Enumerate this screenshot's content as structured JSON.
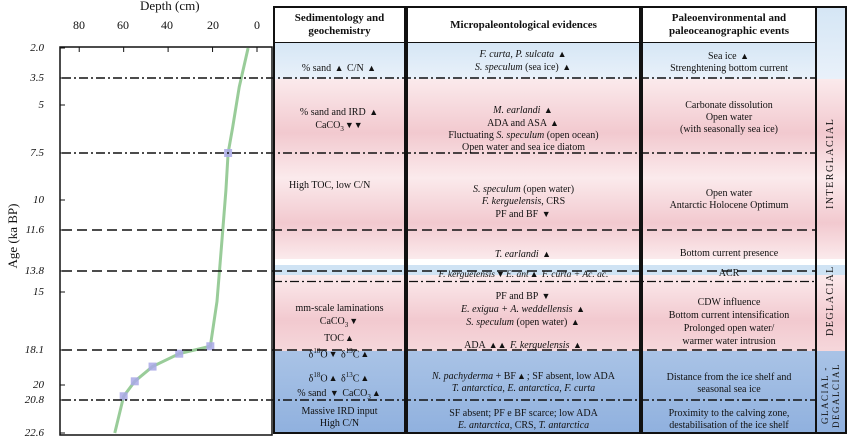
{
  "axes": {
    "x_label": "Depth (cm)",
    "x_ticks": [
      "80",
      "60",
      "40",
      "20",
      "0"
    ],
    "y_label": "Age (ka BP)",
    "y_ticks": [
      "2.0",
      "3.5",
      "5",
      "7.5",
      "10",
      "11.6",
      "13.8",
      "15",
      "18.1",
      "20",
      "20.8",
      "22.6"
    ]
  },
  "chart_data": {
    "type": "line",
    "xlabel": "Depth (cm)",
    "ylabel": "Age (ka BP)",
    "xlim": [
      90,
      0
    ],
    "ylim": [
      2.0,
      22.6
    ],
    "x_reversed": true,
    "series": [
      {
        "name": "",
        "points": [
          [
            4,
            2.0
          ],
          [
            8,
            4.0
          ],
          [
            11,
            6.2
          ],
          [
            13,
            7.5
          ],
          [
            14,
            9.5
          ],
          [
            16,
            12.5
          ],
          [
            18,
            15.5
          ],
          [
            21,
            17.9
          ],
          [
            35,
            18.3
          ],
          [
            47,
            19.0
          ],
          [
            55,
            19.8
          ],
          [
            60,
            20.6
          ],
          [
            64,
            22.6
          ]
        ]
      }
    ],
    "markers": [
      [
        13,
        7.5
      ],
      [
        21,
        17.9
      ],
      [
        35,
        18.3
      ],
      [
        47,
        19.0
      ],
      [
        55,
        19.8
      ],
      [
        60,
        20.6
      ]
    ]
  },
  "headers": {
    "sed": "Sedimentology and geochemistry",
    "micro": "Micropaleontological evidences",
    "paleo": "Paleoenvironmental and paleoceanographic events"
  },
  "sedimentology": {
    "r1_a": "% sand",
    "r1_b": "C/N",
    "r2_a": "% sand and IRD",
    "r2_b": "CaCO",
    "r2_sub": "3",
    "r3": "High TOC, low C/N",
    "r4_a": "mm-scale laminations",
    "r4_b": "CaCO",
    "r4_sub": "3",
    "r4_c": "TOC",
    "r4_d": "δ",
    "r4_d_sup": "18",
    "r4_d2": "O",
    "r4_e": "δ",
    "r4_e_sup": "13",
    "r4_e2": "C",
    "r5_a": "δ",
    "r5_a_sup": "18",
    "r5_a2": "O",
    "r5_b": "δ",
    "r5_b_sup": "13",
    "r5_b2": "C",
    "r5_c": "% sand",
    "r5_d": "CaCO",
    "r5_d_sub": "3",
    "r6_a": "Massive IRD input",
    "r6_b": "High C/N"
  },
  "micro": {
    "a1": "F. curta, P. sulcata",
    "a2": "S. speculum",
    "a2b": "(sea ice)",
    "b1": "M. earlandi",
    "b2": "ADA and ASA",
    "b3_pre": "Fluctuating",
    "b3_it": "S. speculum",
    "b3_post": "(open ocean)",
    "b4": "Open water and sea ice diatom",
    "c1_it": "S. speculum",
    "c1_post": "(open water)",
    "c2_it": "F. kerguelensis",
    "c2_post": ", CRS",
    "c3": "PF and BF",
    "d1": "T. earlandi",
    "e1": "F. kerguelensis",
    "e2": "E. ant",
    "e3": "F. curta",
    "e4": "+ Ac. ac.",
    "f1": "PF and BP",
    "f2": "E. exigua + A. weddellensis",
    "f3_it": "S. speculum",
    "f3_post": "(open water)",
    "f4_pre": "ADA",
    "f4_it": "F. kerguelensis",
    "g1_it": "N. pachyderma",
    "g1_post": "+ BF",
    "g1_tail": "; SF absent, low ADA",
    "g2": "T. antarctica, E. antarctica, F. curta",
    "h1": "SF absent; PF e BF scarce; low ADA",
    "h2_it1": "E. antarctica",
    "h2_mid": ", CRS, ",
    "h2_it2": "T. antarctica"
  },
  "paleo": {
    "a1": "Sea ice",
    "a2": "Strenghtening bottom current",
    "b1": "Carbonate dissolution",
    "b2": "Open  water",
    "b3": "(with seasonally sea ice)",
    "c1": "Open  water",
    "c2": "Antarctic Holocene Optimum",
    "d1": "Bottom current presence",
    "e1": "ACR",
    "f1": "CDW influence",
    "f2": "Bottom current intensification",
    "f3": "Prolonged open water/",
    "f4": "warmer water intrusion",
    "g1": "Distance from the ice shelf and",
    "g2": "seasonal sea ice",
    "h1": "Proximity to the calving zone,",
    "h2": "destabilisation of the ice shelf"
  },
  "periods": {
    "interglacial": "INTERGLACIAL",
    "deglacial": "DEGLACIAL",
    "glacial": "GLACIAL - DEGALCIAL"
  },
  "colors": {
    "pink": "#f2c9cf",
    "pink_light": "#fbeaec",
    "blue": "#8fb0de",
    "blue_light": "#d5e6f5",
    "line": "#7fbf7f",
    "marker": "#a9a8e6"
  }
}
